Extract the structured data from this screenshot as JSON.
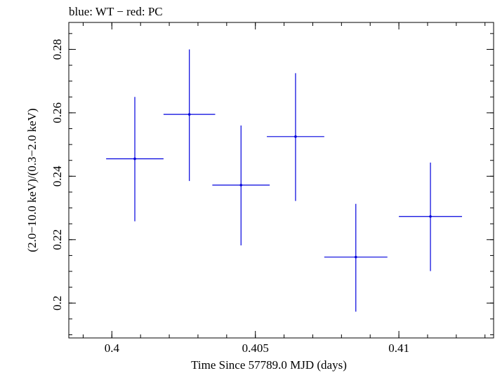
{
  "chart_data": {
    "type": "scatter",
    "title": "blue: WT − red: PC",
    "xlabel": "Time Since 57789.0 MJD (days)",
    "ylabel": "(2.0−10.0 keV)/(0.3−2.0 keV)",
    "xlim": [
      0.3985,
      0.4133
    ],
    "ylim": [
      0.189,
      0.2885
    ],
    "x_ticks": [
      0.4,
      0.405,
      0.41
    ],
    "x_tick_labels": [
      "0.4",
      "0.405",
      "0.41"
    ],
    "y_ticks": [
      0.2,
      0.22,
      0.24,
      0.26,
      0.28
    ],
    "y_tick_labels": [
      "0.2",
      "0.22",
      "0.24",
      "0.26",
      "0.28"
    ],
    "x_minor_step": 0.001,
    "y_minor_step": 0.005,
    "grid": false,
    "series": [
      {
        "color": "#0000dd",
        "points": [
          {
            "x": 0.4008,
            "y": 0.2455,
            "xerr": [
              0.001,
              0.001
            ],
            "yerr": [
              0.0197,
              0.0195
            ]
          },
          {
            "x": 0.4027,
            "y": 0.2595,
            "xerr": [
              0.0009,
              0.0009
            ],
            "yerr": [
              0.021,
              0.0205
            ]
          },
          {
            "x": 0.4045,
            "y": 0.2372,
            "xerr": [
              0.001,
              0.001
            ],
            "yerr": [
              0.019,
              0.0188
            ]
          },
          {
            "x": 0.4064,
            "y": 0.2525,
            "xerr": [
              0.001,
              0.001
            ],
            "yerr": [
              0.0203,
              0.02
            ]
          },
          {
            "x": 0.4085,
            "y": 0.2145,
            "xerr": [
              0.0011,
              0.0011
            ],
            "yerr": [
              0.0172,
              0.0168
            ]
          },
          {
            "x": 0.4111,
            "y": 0.2273,
            "xerr": [
              0.0011,
              0.0011
            ],
            "yerr": [
              0.0172,
              0.017
            ]
          }
        ]
      }
    ]
  }
}
